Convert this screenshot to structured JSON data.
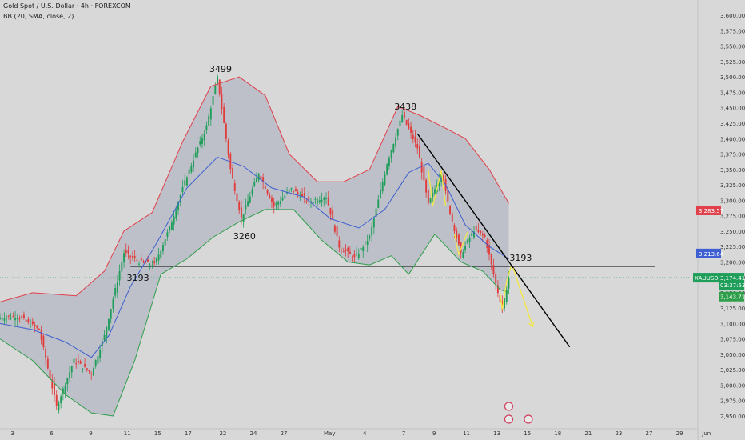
{
  "header": {
    "title": "Gold Spot / U.S. Dollar · 4h · FOREXCOM",
    "indicator": "BB (20, SMA, close, 2)"
  },
  "colors": {
    "background": "#d8d8d8",
    "band_fill": "#b8bcc6",
    "upper_band": "#e0404a",
    "lower_band": "#2e9e4a",
    "basis": "#3d5fd1",
    "bull": "#1f9e5a",
    "bear": "#e23b3b",
    "arrow": "#f2e84a",
    "line": "#000000",
    "hline": "#2aa37a"
  },
  "chart_data": {
    "type": "candlestick",
    "title": "Gold Spot / U.S. Dollar · 4h · FOREXCOM",
    "symbol": "XAUUSD",
    "ylim": [
      2937,
      3608
    ],
    "y_ticks": [
      "3,600.00",
      "3,575.00",
      "3,550.00",
      "3,525.00",
      "3,500.00",
      "3,475.00",
      "3,450.00",
      "3,425.00",
      "3,400.00",
      "3,375.00",
      "3,350.00",
      "3,325.00",
      "3,300.00",
      "3,275.00",
      "3,250.00",
      "3,225.00",
      "3,200.00",
      "3,175.00",
      "3,150.00",
      "3,125.00",
      "3,100.00",
      "3,075.00",
      "3,050.00",
      "3,025.00",
      "3,000.00",
      "2,975.00",
      "2,950.00"
    ],
    "y_tick_values": [
      3600,
      3575,
      3550,
      3525,
      3500,
      3475,
      3450,
      3425,
      3400,
      3375,
      3350,
      3325,
      3300,
      3275,
      3250,
      3225,
      3200,
      3175,
      3150,
      3125,
      3100,
      3075,
      3050,
      3025,
      3000,
      2975,
      2950
    ],
    "x_ticks": [
      "3",
      "6",
      "9",
      "11",
      "15",
      "17",
      "22",
      "24",
      "27",
      "May",
      "4",
      "7",
      "9",
      "11",
      "13",
      "15",
      "18",
      "21",
      "23",
      "27",
      "29",
      "Jun"
    ],
    "price_path": [
      {
        "bar": 0,
        "price": 3110
      },
      {
        "bar": 8,
        "price": 3112
      },
      {
        "bar": 18,
        "price": 3090
      },
      {
        "bar": 26,
        "price": 2965
      },
      {
        "bar": 34,
        "price": 3040
      },
      {
        "bar": 42,
        "price": 3020
      },
      {
        "bar": 48,
        "price": 3080
      },
      {
        "bar": 57,
        "price": 3215
      },
      {
        "bar": 64,
        "price": 3200
      },
      {
        "bar": 71,
        "price": 3195
      },
      {
        "bar": 78,
        "price": 3255
      },
      {
        "bar": 86,
        "price": 3340
      },
      {
        "bar": 95,
        "price": 3420
      },
      {
        "bar": 100,
        "price": 3499
      },
      {
        "bar": 106,
        "price": 3350
      },
      {
        "bar": 111,
        "price": 3270
      },
      {
        "bar": 119,
        "price": 3345
      },
      {
        "bar": 126,
        "price": 3290
      },
      {
        "bar": 134,
        "price": 3318
      },
      {
        "bar": 142,
        "price": 3298
      },
      {
        "bar": 150,
        "price": 3306
      },
      {
        "bar": 156,
        "price": 3225
      },
      {
        "bar": 163,
        "price": 3206
      },
      {
        "bar": 170,
        "price": 3240
      },
      {
        "bar": 178,
        "price": 3360
      },
      {
        "bar": 185,
        "price": 3438
      },
      {
        "bar": 192,
        "price": 3385
      },
      {
        "bar": 197,
        "price": 3292
      },
      {
        "bar": 203,
        "price": 3345
      },
      {
        "bar": 207,
        "price": 3280
      },
      {
        "bar": 212,
        "price": 3212
      },
      {
        "bar": 218,
        "price": 3252
      },
      {
        "bar": 223,
        "price": 3240
      },
      {
        "bar": 228,
        "price": 3165
      },
      {
        "bar": 231,
        "price": 3123
      },
      {
        "bar": 234,
        "price": 3174
      }
    ],
    "bollinger": {
      "period": 20,
      "ma": "SMA",
      "source": "close",
      "stddev": 2,
      "upper": [
        [
          0,
          3135
        ],
        [
          15,
          3150
        ],
        [
          35,
          3145
        ],
        [
          48,
          3185
        ],
        [
          57,
          3250
        ],
        [
          70,
          3280
        ],
        [
          84,
          3395
        ],
        [
          97,
          3485
        ],
        [
          110,
          3500
        ],
        [
          122,
          3470
        ],
        [
          133,
          3375
        ],
        [
          146,
          3330
        ],
        [
          158,
          3330
        ],
        [
          170,
          3350
        ],
        [
          183,
          3452
        ],
        [
          193,
          3438
        ],
        [
          206,
          3415
        ],
        [
          214,
          3400
        ],
        [
          225,
          3350
        ],
        [
          234,
          3295
        ]
      ],
      "basis": [
        [
          0,
          3100
        ],
        [
          15,
          3090
        ],
        [
          30,
          3070
        ],
        [
          42,
          3045
        ],
        [
          50,
          3080
        ],
        [
          60,
          3160
        ],
        [
          72,
          3230
        ],
        [
          86,
          3320
        ],
        [
          100,
          3370
        ],
        [
          112,
          3355
        ],
        [
          125,
          3320
        ],
        [
          140,
          3305
        ],
        [
          152,
          3270
        ],
        [
          165,
          3255
        ],
        [
          177,
          3285
        ],
        [
          188,
          3345
        ],
        [
          197,
          3360
        ],
        [
          205,
          3325
        ],
        [
          214,
          3260
        ],
        [
          225,
          3225
        ],
        [
          234,
          3205
        ]
      ],
      "lower": [
        [
          0,
          3075
        ],
        [
          15,
          3040
        ],
        [
          30,
          2985
        ],
        [
          42,
          2955
        ],
        [
          52,
          2950
        ],
        [
          62,
          3040
        ],
        [
          74,
          3180
        ],
        [
          86,
          3205
        ],
        [
          98,
          3240
        ],
        [
          110,
          3265
        ],
        [
          122,
          3285
        ],
        [
          135,
          3285
        ],
        [
          148,
          3235
        ],
        [
          160,
          3200
        ],
        [
          170,
          3195
        ],
        [
          180,
          3210
        ],
        [
          188,
          3180
        ],
        [
          200,
          3245
        ],
        [
          212,
          3200
        ],
        [
          222,
          3185
        ],
        [
          230,
          3155
        ],
        [
          234,
          3150
        ]
      ]
    },
    "annotations": [
      {
        "type": "label",
        "text": "3499",
        "bar": 100,
        "price": 3499
      },
      {
        "type": "label",
        "text": "3260",
        "bar": 111,
        "price": 3260
      },
      {
        "type": "label",
        "text": "3438",
        "bar": 185,
        "price": 3438
      },
      {
        "type": "label",
        "text": "3193",
        "bar": 62,
        "price": 3193
      },
      {
        "type": "label",
        "text": "3193",
        "bar": 238,
        "price": 3193
      },
      {
        "type": "hline",
        "price": 3193
      },
      {
        "type": "trendline",
        "from_bar": 192,
        "from_price": 3408,
        "to_bar": 262,
        "to_price": 3062
      },
      {
        "type": "arrow",
        "direction": "down"
      }
    ],
    "price_labels": [
      {
        "text": "3,283.57",
        "price": 3283.57,
        "color": "#e0404a"
      },
      {
        "text": "3,213.64",
        "price": 3213.64,
        "color": "#3d5fd1"
      },
      {
        "text": "XAUUSD",
        "price": 3174.41,
        "color": "#1f9e5a"
      },
      {
        "text": "3,174.41",
        "price": 3174.41,
        "color": "#1f9e5a"
      },
      {
        "text": "03:37:53",
        "price": 3174.41,
        "color": "#1f9e5a"
      },
      {
        "text": "3,143.71",
        "price": 3143.71,
        "color": "#2e9e4a"
      }
    ],
    "last_price": 3174.41,
    "countdown": "03:37:53",
    "grid": false,
    "legend": "top-left"
  }
}
